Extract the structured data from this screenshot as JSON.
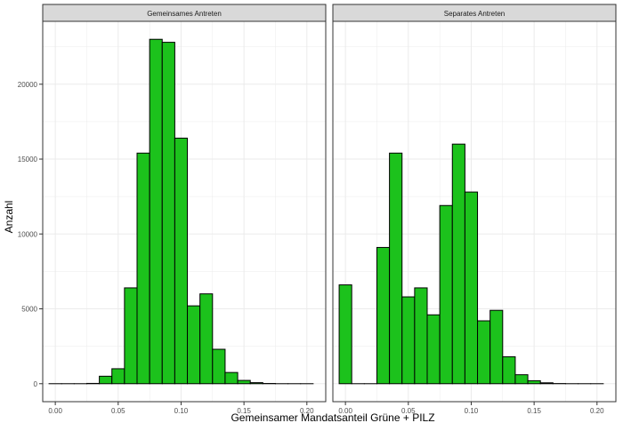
{
  "chart_data": {
    "type": "bar",
    "subtype": "faceted-histogram",
    "xlabel": "Gemeinsamer Mandatsanteil Grüne + PILZ",
    "ylabel": "Anzahl",
    "x_ticks": [
      "0.00",
      "0.05",
      "0.10",
      "0.15",
      "0.20"
    ],
    "x_tick_values": [
      0,
      0.05,
      0.1,
      0.15,
      0.2
    ],
    "y_ticks": [
      "0",
      "5000",
      "10000",
      "15000",
      "20000"
    ],
    "y_tick_values": [
      0,
      5000,
      10000,
      15000,
      20000
    ],
    "xlim": [
      -0.01,
      0.215
    ],
    "ylim": [
      -1200,
      24200
    ],
    "bin_width": 0.01,
    "grid": true,
    "bar_fill": "#1CC21C",
    "bar_stroke": "#000000",
    "strip_fill": "#D9D9D9",
    "grid_color": "#EBEBEB",
    "panels": [
      {
        "title": "Gemeinsames Antreten",
        "bins": [
          {
            "x": 0.0,
            "count": 0
          },
          {
            "x": 0.01,
            "count": 0
          },
          {
            "x": 0.02,
            "count": 0
          },
          {
            "x": 0.03,
            "count": 20
          },
          {
            "x": 0.04,
            "count": 500
          },
          {
            "x": 0.05,
            "count": 1000
          },
          {
            "x": 0.06,
            "count": 6400
          },
          {
            "x": 0.07,
            "count": 15400
          },
          {
            "x": 0.08,
            "count": 23000
          },
          {
            "x": 0.09,
            "count": 22800
          },
          {
            "x": 0.1,
            "count": 16400
          },
          {
            "x": 0.11,
            "count": 5200
          },
          {
            "x": 0.12,
            "count": 6000
          },
          {
            "x": 0.13,
            "count": 2300
          },
          {
            "x": 0.14,
            "count": 750
          },
          {
            "x": 0.15,
            "count": 220
          },
          {
            "x": 0.16,
            "count": 70
          },
          {
            "x": 0.17,
            "count": 15
          },
          {
            "x": 0.18,
            "count": 0
          },
          {
            "x": 0.19,
            "count": 0
          },
          {
            "x": 0.2,
            "count": 0
          }
        ]
      },
      {
        "title": "Separates Antreten",
        "bins": [
          {
            "x": 0.0,
            "count": 6600
          },
          {
            "x": 0.01,
            "count": 0
          },
          {
            "x": 0.02,
            "count": 0
          },
          {
            "x": 0.03,
            "count": 9100
          },
          {
            "x": 0.04,
            "count": 15400
          },
          {
            "x": 0.05,
            "count": 5800
          },
          {
            "x": 0.06,
            "count": 6400
          },
          {
            "x": 0.07,
            "count": 4600
          },
          {
            "x": 0.08,
            "count": 11900
          },
          {
            "x": 0.09,
            "count": 16000
          },
          {
            "x": 0.1,
            "count": 12800
          },
          {
            "x": 0.11,
            "count": 4200
          },
          {
            "x": 0.12,
            "count": 4900
          },
          {
            "x": 0.13,
            "count": 1800
          },
          {
            "x": 0.14,
            "count": 600
          },
          {
            "x": 0.15,
            "count": 200
          },
          {
            "x": 0.16,
            "count": 60
          },
          {
            "x": 0.17,
            "count": 10
          },
          {
            "x": 0.18,
            "count": 0
          },
          {
            "x": 0.19,
            "count": 0
          },
          {
            "x": 0.2,
            "count": 0
          }
        ]
      }
    ]
  }
}
